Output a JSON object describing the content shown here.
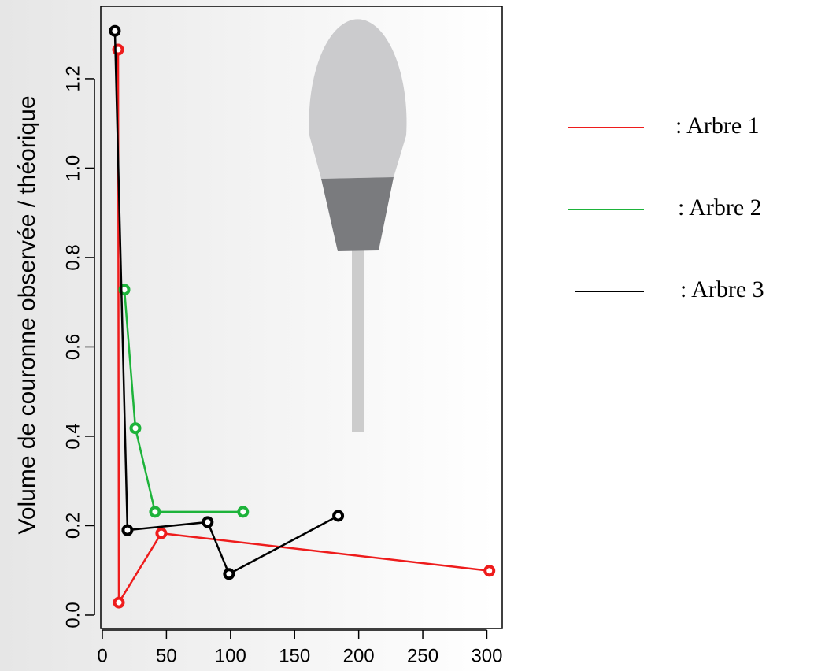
{
  "chart_data": {
    "type": "line",
    "y_label": "Volume de couronne observée / théorique",
    "xlim": [
      0,
      312
    ],
    "ylim": [
      -0.03,
      1.362
    ],
    "xticks": [
      0,
      50,
      100,
      150,
      200,
      250,
      300
    ],
    "yticks": [
      {
        "value": 0,
        "label": "0.0"
      },
      0.2,
      0.4,
      0.6,
      0.8,
      {
        "value": 1,
        "label": "1.0"
      },
      1.2
    ],
    "series": [
      {
        "name": ": Arbre 1",
        "color": "#ee1c1c",
        "x": [
          12.3,
          12.9,
          46,
          302
        ],
        "values": [
          1.265,
          0.028,
          0.183,
          0.099
        ]
      },
      {
        "name": ": Arbre 2",
        "color": "#1db33a",
        "x": [
          17.2,
          25.8,
          41.1,
          109.8
        ],
        "values": [
          0.728,
          0.418,
          0.231,
          0.231
        ]
      },
      {
        "name": ": Arbre 3",
        "color": "#000000",
        "x": [
          9.8,
          19.6,
          82.2,
          98.8,
          184
        ],
        "values": [
          1.307,
          0.19,
          0.208,
          0.092,
          0.222
        ]
      }
    ]
  }
}
